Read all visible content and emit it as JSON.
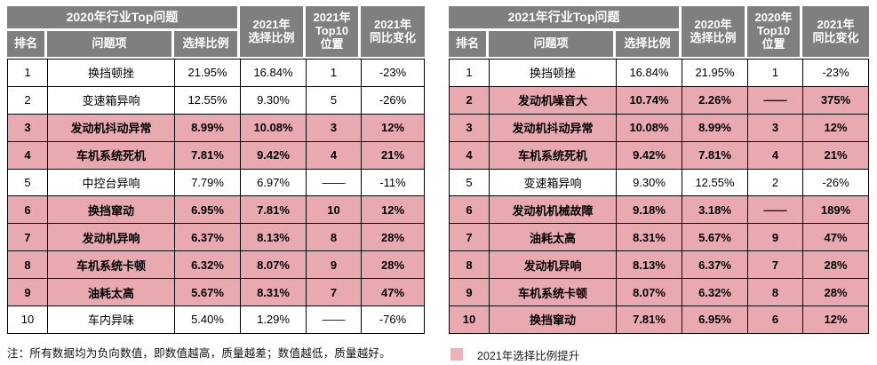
{
  "colors": {
    "header_bg": "#7f7f7f",
    "header_text": "#ffffff",
    "highlight_row_bg": "#e9a9b0",
    "legend_swatch": "#ecb2b8",
    "grid_border": "#000000"
  },
  "chart_data": [
    {
      "type": "table",
      "title": "2020年行业Top问题",
      "columns": [
        "排名",
        "问题项",
        "选择比例",
        "2021年选择比例",
        "2021年Top10位置",
        "2021年同比变化"
      ],
      "header": {
        "sub": [
          "排名",
          "问题项",
          "选择比例"
        ],
        "tall": [
          "2021年\n选择比例",
          "2021年\nTop10\n位置",
          "2021年\n同比变化"
        ]
      },
      "rows": [
        {
          "rank": "1",
          "item": "换挡顿挫",
          "ratio": "21.95%",
          "compare_ratio": "16.84%",
          "top10_position": "1",
          "yoy_change": "-23%",
          "highlight": false
        },
        {
          "rank": "2",
          "item": "变速箱异响",
          "ratio": "12.55%",
          "compare_ratio": "9.30%",
          "top10_position": "5",
          "yoy_change": "-26%",
          "highlight": false
        },
        {
          "rank": "3",
          "item": "发动机抖动异常",
          "ratio": "8.99%",
          "compare_ratio": "10.08%",
          "top10_position": "3",
          "yoy_change": "12%",
          "highlight": true
        },
        {
          "rank": "4",
          "item": "车机系统死机",
          "ratio": "7.81%",
          "compare_ratio": "9.42%",
          "top10_position": "4",
          "yoy_change": "21%",
          "highlight": true
        },
        {
          "rank": "5",
          "item": "中控台异响",
          "ratio": "7.79%",
          "compare_ratio": "6.97%",
          "top10_position": "——",
          "yoy_change": "-11%",
          "highlight": false
        },
        {
          "rank": "6",
          "item": "换挡窜动",
          "ratio": "6.95%",
          "compare_ratio": "7.81%",
          "top10_position": "10",
          "yoy_change": "12%",
          "highlight": true
        },
        {
          "rank": "7",
          "item": "发动机异响",
          "ratio": "6.37%",
          "compare_ratio": "8.13%",
          "top10_position": "8",
          "yoy_change": "28%",
          "highlight": true
        },
        {
          "rank": "8",
          "item": "车机系统卡顿",
          "ratio": "6.32%",
          "compare_ratio": "8.07%",
          "top10_position": "9",
          "yoy_change": "28%",
          "highlight": true
        },
        {
          "rank": "9",
          "item": "油耗太高",
          "ratio": "5.67%",
          "compare_ratio": "8.31%",
          "top10_position": "7",
          "yoy_change": "47%",
          "highlight": true
        },
        {
          "rank": "10",
          "item": "车内异味",
          "ratio": "5.40%",
          "compare_ratio": "1.29%",
          "top10_position": "——",
          "yoy_change": "-76%",
          "highlight": false
        }
      ],
      "footnote": "注：所有数据均为负向数值，即数值越高，质量越差；数值越低，质量越好。"
    },
    {
      "type": "table",
      "title": "2021年行业Top问题",
      "columns": [
        "排名",
        "问题项",
        "选择比例",
        "2020年选择比例",
        "2020年Top10位置",
        "2021年同比变化"
      ],
      "header": {
        "sub": [
          "排名",
          "问题项",
          "选择比例"
        ],
        "tall": [
          "2020年\n选择比例",
          "2020年\nTop10\n位置",
          "2021年\n同比变化"
        ]
      },
      "rows": [
        {
          "rank": "1",
          "item": "换挡顿挫",
          "ratio": "16.84%",
          "compare_ratio": "21.95%",
          "top10_position": "1",
          "yoy_change": "-23%",
          "highlight": false
        },
        {
          "rank": "2",
          "item": "发动机噪音大",
          "ratio": "10.74%",
          "compare_ratio": "2.26%",
          "top10_position": "——",
          "yoy_change": "375%",
          "highlight": true
        },
        {
          "rank": "3",
          "item": "发动机抖动异常",
          "ratio": "10.08%",
          "compare_ratio": "8.99%",
          "top10_position": "3",
          "yoy_change": "12%",
          "highlight": true
        },
        {
          "rank": "4",
          "item": "车机系统死机",
          "ratio": "9.42%",
          "compare_ratio": "7.81%",
          "top10_position": "4",
          "yoy_change": "21%",
          "highlight": true
        },
        {
          "rank": "5",
          "item": "变速箱异响",
          "ratio": "9.30%",
          "compare_ratio": "12.55%",
          "top10_position": "2",
          "yoy_change": "-26%",
          "highlight": false
        },
        {
          "rank": "6",
          "item": "发动机机械故障",
          "ratio": "9.18%",
          "compare_ratio": "3.18%",
          "top10_position": "——",
          "yoy_change": "189%",
          "highlight": true
        },
        {
          "rank": "7",
          "item": "油耗太高",
          "ratio": "8.31%",
          "compare_ratio": "5.67%",
          "top10_position": "9",
          "yoy_change": "47%",
          "highlight": true
        },
        {
          "rank": "8",
          "item": "发动机异响",
          "ratio": "8.13%",
          "compare_ratio": "6.37%",
          "top10_position": "7",
          "yoy_change": "28%",
          "highlight": true
        },
        {
          "rank": "9",
          "item": "车机系统卡顿",
          "ratio": "8.07%",
          "compare_ratio": "6.32%",
          "top10_position": "8",
          "yoy_change": "28%",
          "highlight": true
        },
        {
          "rank": "10",
          "item": "换挡窜动",
          "ratio": "7.81%",
          "compare_ratio": "6.95%",
          "top10_position": "6",
          "yoy_change": "12%",
          "highlight": true
        }
      ],
      "legend": "2021年选择比例提升"
    }
  ]
}
